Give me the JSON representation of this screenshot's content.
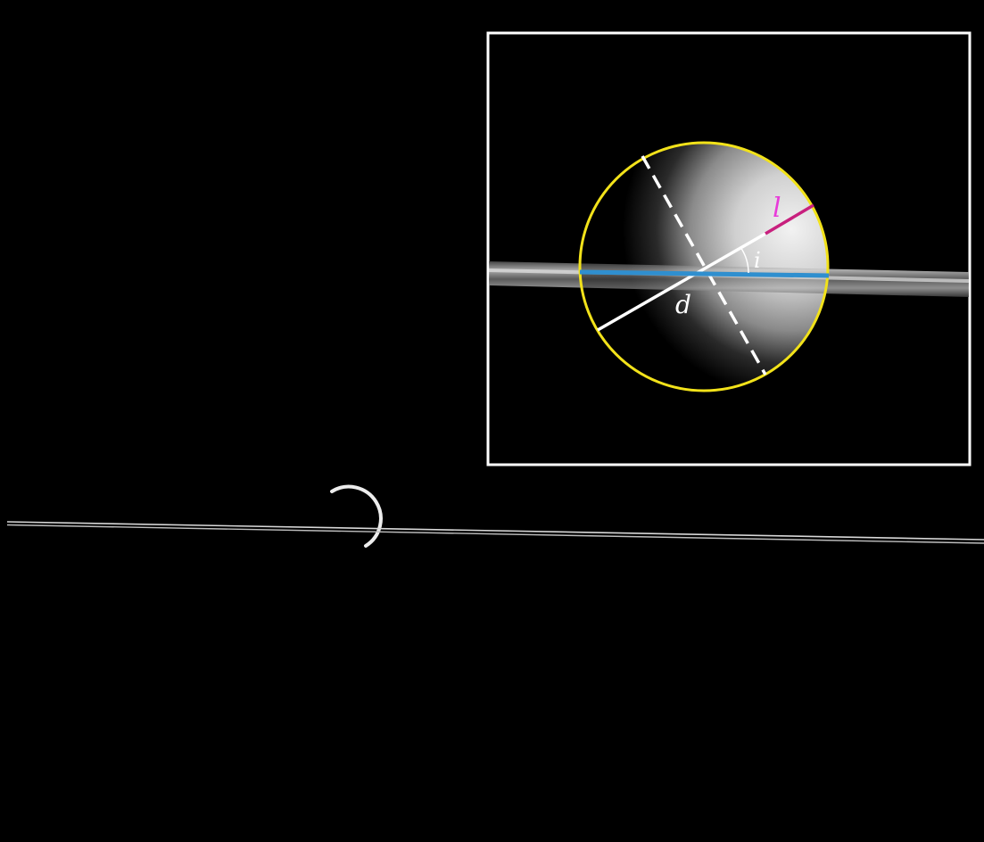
{
  "labels": {
    "l": "l",
    "i": "i",
    "d": "d"
  },
  "colors": {
    "space": "#000000",
    "frame": "#ffffff",
    "moon_outline": "#f2e21a",
    "ring_line": "#2f8fcf",
    "axis_line": "#ffffff",
    "segment_l": "#c8207e",
    "label_l": "#e83ad9",
    "label_default": "#ffffff"
  }
}
